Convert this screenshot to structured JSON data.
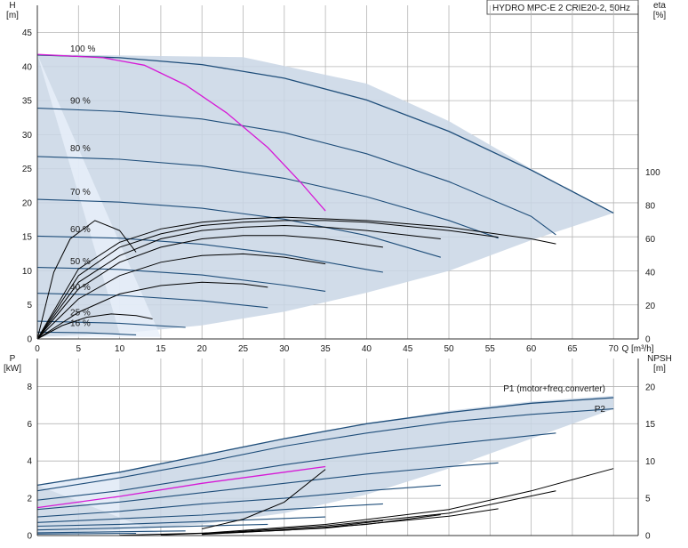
{
  "title": "HYDRO MPC-E 2 CRIE20-2, 50Hz",
  "colors": {
    "envelope": "#c9d6e5",
    "envelope_light": "#e8f0fa",
    "curve": "#1f4e7a",
    "max_curve": "#d61ad6",
    "eta": "#000000",
    "grid": "#b5b5b5"
  },
  "chart_data": [
    {
      "type": "line",
      "name": "head",
      "xlabel": "Q [m³/h]",
      "ylabel": [
        "H",
        "[m]"
      ],
      "y2label": [
        "eta",
        "[%]"
      ],
      "xlim": [
        0,
        73
      ],
      "ylim": [
        0,
        49
      ],
      "y2lim": [
        0,
        200
      ],
      "xticks": [
        0,
        5,
        10,
        15,
        20,
        25,
        30,
        35,
        40,
        45,
        50,
        55,
        60,
        65,
        70
      ],
      "yticks": [
        0,
        5,
        10,
        15,
        20,
        25,
        30,
        35,
        40,
        45
      ],
      "y2ticks": [
        0,
        20,
        40,
        60,
        80,
        100
      ],
      "grid": true,
      "speed_labels": [
        {
          "text": "100 %",
          "x": 4,
          "y": 41.8
        },
        {
          "text": "90 %",
          "x": 4,
          "y": 34.2
        },
        {
          "text": "80 %",
          "x": 4,
          "y": 27.2
        },
        {
          "text": "70 %",
          "x": 4,
          "y": 20.8
        },
        {
          "text": "60 %",
          "x": 4,
          "y": 15.3
        },
        {
          "text": "50 %",
          "x": 4,
          "y": 10.6
        },
        {
          "text": "40 %",
          "x": 4,
          "y": 6.8
        },
        {
          "text": "25 %",
          "x": 4,
          "y": 3.1
        },
        {
          "text": "16 %",
          "x": 4,
          "y": 1.5
        }
      ],
      "envelope": [
        [
          0,
          41.8
        ],
        [
          25,
          41.4
        ],
        [
          40,
          37.5
        ],
        [
          50,
          32
        ],
        [
          60,
          25
        ],
        [
          70,
          18.5
        ],
        [
          70,
          18.5
        ],
        [
          60,
          14.5
        ],
        [
          50,
          10
        ],
        [
          40,
          6.8
        ],
        [
          30,
          4
        ],
        [
          20,
          2
        ],
        [
          10,
          0.8
        ],
        [
          0,
          0.3
        ]
      ],
      "curves": [
        {
          "name": "100 %",
          "points": [
            [
              0,
              41.7
            ],
            [
              10,
              41.3
            ],
            [
              20,
              40.3
            ],
            [
              30,
              38.3
            ],
            [
              40,
              35.1
            ],
            [
              50,
              30.5
            ],
            [
              60,
              24.8
            ],
            [
              70,
              18.5
            ]
          ]
        },
        {
          "name": "90 %",
          "points": [
            [
              0,
              33.9
            ],
            [
              10,
              33.4
            ],
            [
              20,
              32.3
            ],
            [
              30,
              30.3
            ],
            [
              40,
              27.2
            ],
            [
              50,
              23.1
            ],
            [
              60,
              18.0
            ],
            [
              63,
              15.3
            ]
          ]
        },
        {
          "name": "80 %",
          "points": [
            [
              0,
              26.8
            ],
            [
              10,
              26.4
            ],
            [
              20,
              25.4
            ],
            [
              30,
              23.6
            ],
            [
              40,
              20.9
            ],
            [
              50,
              17.4
            ],
            [
              56,
              14.8
            ]
          ]
        },
        {
          "name": "70 %",
          "points": [
            [
              0,
              20.5
            ],
            [
              10,
              20.1
            ],
            [
              20,
              19.2
            ],
            [
              30,
              17.6
            ],
            [
              40,
              15.2
            ],
            [
              49,
              12.0
            ]
          ]
        },
        {
          "name": "60 %",
          "points": [
            [
              0,
              15.1
            ],
            [
              10,
              14.8
            ],
            [
              20,
              13.9
            ],
            [
              30,
              12.4
            ],
            [
              40,
              10.2
            ],
            [
              42,
              9.8
            ]
          ]
        },
        {
          "name": "50 %",
          "points": [
            [
              0,
              10.5
            ],
            [
              10,
              10.2
            ],
            [
              20,
              9.4
            ],
            [
              30,
              7.9
            ],
            [
              35,
              7.0
            ]
          ]
        },
        {
          "name": "40 %",
          "points": [
            [
              0,
              6.7
            ],
            [
              10,
              6.4
            ],
            [
              20,
              5.6
            ],
            [
              28,
              4.6
            ]
          ]
        },
        {
          "name": "25 %",
          "points": [
            [
              0,
              2.6
            ],
            [
              10,
              2.3
            ],
            [
              18,
              1.7
            ]
          ]
        },
        {
          "name": "16 %",
          "points": [
            [
              0,
              1.0
            ],
            [
              6,
              0.9
            ],
            [
              12,
              0.6
            ]
          ]
        }
      ],
      "max_curve": [
        [
          0,
          41.8
        ],
        [
          8,
          41.3
        ],
        [
          13,
          40.2
        ],
        [
          18,
          37.3
        ],
        [
          23,
          33.2
        ],
        [
          28,
          28.1
        ],
        [
          32,
          23.0
        ],
        [
          35,
          18.8
        ]
      ],
      "eta_curves": [
        [
          [
            0,
            0
          ],
          [
            5,
            42
          ],
          [
            10,
            58
          ],
          [
            15,
            66
          ],
          [
            20,
            70
          ],
          [
            25,
            72
          ],
          [
            30,
            73
          ],
          [
            35,
            72
          ],
          [
            40,
            71
          ],
          [
            50,
            67
          ],
          [
            60,
            60
          ],
          [
            63,
            57
          ]
        ],
        [
          [
            0,
            0
          ],
          [
            5,
            38
          ],
          [
            10,
            55
          ],
          [
            15,
            63
          ],
          [
            20,
            68
          ],
          [
            25,
            70
          ],
          [
            30,
            71
          ],
          [
            35,
            71
          ],
          [
            40,
            70
          ],
          [
            50,
            65
          ],
          [
            56,
            61
          ]
        ],
        [
          [
            0,
            0
          ],
          [
            5,
            34
          ],
          [
            10,
            50
          ],
          [
            15,
            60
          ],
          [
            20,
            65
          ],
          [
            25,
            67
          ],
          [
            30,
            68
          ],
          [
            35,
            67
          ],
          [
            40,
            65
          ],
          [
            49,
            60
          ]
        ],
        [
          [
            0,
            0
          ],
          [
            5,
            30
          ],
          [
            10,
            46
          ],
          [
            15,
            55
          ],
          [
            20,
            60
          ],
          [
            25,
            62
          ],
          [
            30,
            62
          ],
          [
            35,
            60
          ],
          [
            42,
            55
          ]
        ],
        [
          [
            0,
            0
          ],
          [
            5,
            24
          ],
          [
            10,
            38
          ],
          [
            15,
            46
          ],
          [
            20,
            50
          ],
          [
            25,
            51
          ],
          [
            30,
            49
          ],
          [
            35,
            45
          ]
        ],
        [
          [
            0,
            0
          ],
          [
            5,
            16
          ],
          [
            10,
            27
          ],
          [
            15,
            32
          ],
          [
            20,
            34
          ],
          [
            25,
            33
          ],
          [
            28,
            31
          ]
        ],
        [
          [
            0,
            0
          ],
          [
            3,
            8
          ],
          [
            6,
            13
          ],
          [
            9,
            15
          ],
          [
            12,
            14
          ],
          [
            14,
            12
          ]
        ],
        [
          [
            0,
            0
          ],
          [
            2,
            40
          ],
          [
            4,
            60
          ],
          [
            7,
            71
          ],
          [
            10,
            65
          ],
          [
            12,
            52
          ]
        ]
      ]
    },
    {
      "type": "line",
      "name": "power",
      "xlim": [
        0,
        73
      ],
      "ylim": [
        0,
        9.5
      ],
      "y2lim": [
        0,
        23.8
      ],
      "ylabel": [
        "P",
        "[kW]"
      ],
      "y2label": [
        "NPSH",
        "[m]"
      ],
      "yticks": [
        0,
        2,
        4,
        6,
        8
      ],
      "y2ticks": [
        0,
        5,
        10,
        15,
        20
      ],
      "grid": true,
      "series_labels": [
        {
          "text": "P1 (motor+freq.converter)",
          "x": 69,
          "y": 7.6
        },
        {
          "text": "P2",
          "x": 69,
          "y": 6.5
        }
      ],
      "envelope": [
        [
          0,
          2.7
        ],
        [
          10,
          3.4
        ],
        [
          20,
          4.3
        ],
        [
          30,
          5.2
        ],
        [
          40,
          6.0
        ],
        [
          50,
          6.7
        ],
        [
          60,
          7.2
        ],
        [
          70,
          7.5
        ],
        [
          70,
          6.8
        ],
        [
          60,
          5.2
        ],
        [
          50,
          3.6
        ],
        [
          40,
          2.2
        ],
        [
          30,
          1.2
        ],
        [
          20,
          0.6
        ],
        [
          10,
          0.3
        ],
        [
          0,
          0.1
        ]
      ],
      "curves": [
        {
          "name": "P1 100 %",
          "points": [
            [
              0,
              2.7
            ],
            [
              10,
              3.4
            ],
            [
              20,
              4.3
            ],
            [
              30,
              5.2
            ],
            [
              40,
              6.0
            ],
            [
              50,
              6.6
            ],
            [
              60,
              7.1
            ],
            [
              70,
              7.4
            ]
          ]
        },
        {
          "name": "P2 100 %",
          "points": [
            [
              0,
              2.4
            ],
            [
              10,
              3.1
            ],
            [
              20,
              3.9
            ],
            [
              30,
              4.8
            ],
            [
              40,
              5.5
            ],
            [
              50,
              6.1
            ],
            [
              60,
              6.5
            ],
            [
              70,
              6.8
            ]
          ]
        },
        {
          "name": "90 %",
          "points": [
            [
              0,
              1.9
            ],
            [
              10,
              2.4
            ],
            [
              20,
              3.1
            ],
            [
              30,
              3.8
            ],
            [
              40,
              4.4
            ],
            [
              50,
              4.9
            ],
            [
              63,
              5.5
            ]
          ]
        },
        {
          "name": "80 %",
          "points": [
            [
              0,
              1.4
            ],
            [
              10,
              1.8
            ],
            [
              20,
              2.3
            ],
            [
              30,
              2.8
            ],
            [
              40,
              3.3
            ],
            [
              50,
              3.7
            ],
            [
              56,
              3.9
            ]
          ]
        },
        {
          "name": "70 %",
          "points": [
            [
              0,
              1.0
            ],
            [
              10,
              1.3
            ],
            [
              20,
              1.7
            ],
            [
              30,
              2.0
            ],
            [
              40,
              2.4
            ],
            [
              49,
              2.7
            ]
          ]
        },
        {
          "name": "60 %",
          "points": [
            [
              0,
              0.7
            ],
            [
              10,
              0.9
            ],
            [
              20,
              1.1
            ],
            [
              30,
              1.4
            ],
            [
              42,
              1.7
            ]
          ]
        },
        {
          "name": "50 %",
          "points": [
            [
              0,
              0.5
            ],
            [
              10,
              0.6
            ],
            [
              20,
              0.75
            ],
            [
              35,
              1.0
            ]
          ]
        },
        {
          "name": "40 %",
          "points": [
            [
              0,
              0.3
            ],
            [
              10,
              0.4
            ],
            [
              28,
              0.6
            ]
          ]
        },
        {
          "name": "25 %",
          "points": [
            [
              0,
              0.15
            ],
            [
              18,
              0.25
            ]
          ]
        },
        {
          "name": "16 %",
          "points": [
            [
              0,
              0.08
            ],
            [
              12,
              0.12
            ]
          ]
        }
      ],
      "max_curve": [
        [
          0,
          1.5
        ],
        [
          10,
          2.1
        ],
        [
          20,
          2.8
        ],
        [
          30,
          3.4
        ],
        [
          35,
          3.7
        ]
      ],
      "npsh_curves": [
        [
          [
            20,
            0.3
          ],
          [
            35,
            1.5
          ],
          [
            50,
            3.5
          ],
          [
            60,
            6.0
          ],
          [
            70,
            9.0
          ]
        ],
        [
          [
            20,
            0.2
          ],
          [
            35,
            1.3
          ],
          [
            50,
            3.0
          ],
          [
            63,
            6.0
          ]
        ],
        [
          [
            20,
            0.15
          ],
          [
            35,
            1.0
          ],
          [
            50,
            2.6
          ],
          [
            56,
            3.6
          ]
        ],
        [
          [
            15,
            0.1
          ],
          [
            30,
            0.7
          ],
          [
            40,
            1.5
          ],
          [
            49,
            2.8
          ]
        ],
        [
          [
            10,
            0.05
          ],
          [
            25,
            0.45
          ],
          [
            35,
            1.1
          ],
          [
            42,
            2.0
          ]
        ],
        [
          [
            20,
            0.9
          ],
          [
            25,
            2.2
          ],
          [
            30,
            4.5
          ],
          [
            35,
            8.9
          ]
        ]
      ]
    }
  ]
}
